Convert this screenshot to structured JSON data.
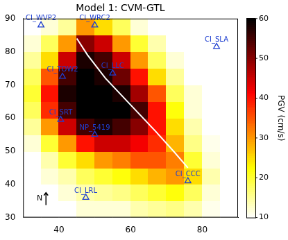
{
  "chart_data": {
    "type": "heatmap",
    "title": "Model 1: CVM-GTL",
    "xlim": [
      30,
      90
    ],
    "ylim": [
      30,
      90
    ],
    "xticks": [
      40,
      60,
      80
    ],
    "yticks": [
      30,
      40,
      50,
      60,
      70,
      80,
      90
    ],
    "grid": false,
    "pgv": {
      "x": [
        32.5,
        37.5,
        42.5,
        47.5,
        52.5,
        57.5,
        62.5,
        67.5,
        72.5,
        77.5,
        82.5,
        87.5
      ],
      "y": [
        32.5,
        37.5,
        42.5,
        47.5,
        52.5,
        57.5,
        62.5,
        67.5,
        72.5,
        77.5,
        82.5,
        87.5
      ],
      "values": [
        [
          10,
          10,
          10,
          12,
          12,
          12,
          14,
          15,
          16,
          14,
          11,
          10
        ],
        [
          10,
          10,
          12,
          14,
          15,
          16,
          18,
          20,
          22,
          18,
          12,
          10
        ],
        [
          10,
          12,
          14,
          18,
          20,
          22,
          25,
          28,
          30,
          25,
          14,
          10
        ],
        [
          10,
          14,
          20,
          25,
          30,
          32,
          35,
          35,
          32,
          20,
          12,
          10
        ],
        [
          12,
          20,
          30,
          40,
          45,
          45,
          42,
          38,
          28,
          16,
          11,
          10
        ],
        [
          15,
          30,
          45,
          55,
          58,
          55,
          50,
          40,
          25,
          14,
          10,
          10
        ],
        [
          18,
          38,
          55,
          60,
          60,
          60,
          55,
          40,
          22,
          12,
          10,
          10
        ],
        [
          20,
          40,
          58,
          60,
          60,
          58,
          48,
          35,
          18,
          12,
          10,
          10
        ],
        [
          18,
          35,
          55,
          60,
          58,
          52,
          40,
          25,
          15,
          10,
          10,
          10
        ],
        [
          15,
          25,
          45,
          58,
          55,
          45,
          30,
          18,
          12,
          10,
          10,
          10
        ],
        [
          12,
          18,
          30,
          50,
          45,
          30,
          20,
          14,
          10,
          10,
          10,
          10
        ],
        [
          10,
          12,
          15,
          30,
          25,
          18,
          12,
          10,
          10,
          10,
          10,
          10
        ]
      ]
    },
    "colorbar": {
      "label": "PGV (cm/s)",
      "range": [
        10,
        60
      ],
      "ticks": [
        10,
        20,
        30,
        40,
        50,
        60
      ]
    },
    "fault": {
      "x": [
        45,
        48,
        53,
        60,
        67,
        72,
        76
      ],
      "y": [
        84,
        79,
        72,
        64,
        56,
        50,
        45
      ],
      "color": "#ffffff",
      "line_style": "solid"
    },
    "stations": {
      "names": [
        "CI_WVP2",
        "CI_WRC2",
        "CI_SLA",
        "CI_TOW2",
        "CI_LLC",
        "CI_SRT",
        "NP_5419",
        "CI_CCC",
        "CI_LRL"
      ],
      "x": [
        35,
        50,
        84,
        41,
        55,
        40.5,
        50,
        76,
        47.5
      ],
      "y": [
        88,
        88,
        81.5,
        72.5,
        73.5,
        59.5,
        55,
        41,
        36
      ],
      "color": "#1f3fd0",
      "marker": "triangle"
    },
    "annotations": [
      {
        "text": "N",
        "x": 36,
        "y": 35
      }
    ]
  }
}
